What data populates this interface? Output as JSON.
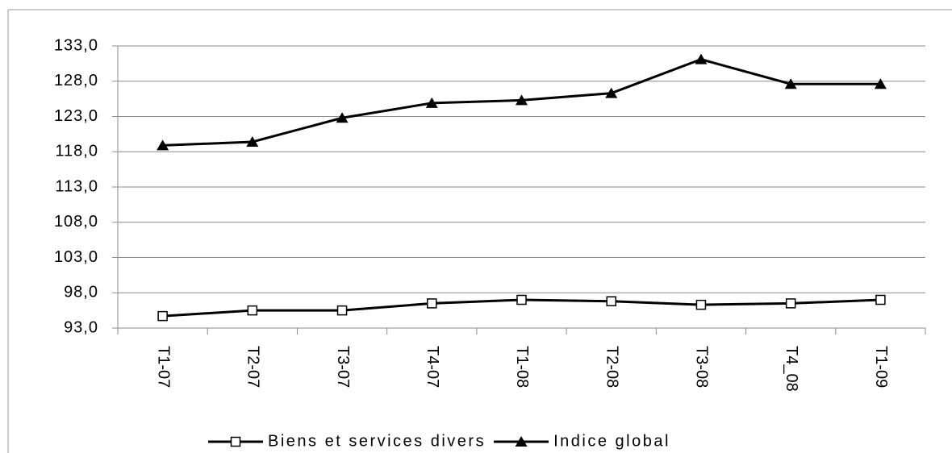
{
  "chart_data": {
    "type": "line",
    "categories": [
      "T1-07",
      "T2-07",
      "T3-07",
      "T4-07",
      "T1-08",
      "T2-08",
      "T3-08",
      "T4_08",
      "T1-09"
    ],
    "series": [
      {
        "name": "Biens et services divers",
        "color": "#000000",
        "marker": "square",
        "values": [
          94.7,
          95.5,
          95.5,
          96.5,
          97.0,
          96.8,
          96.3,
          96.5,
          97.0
        ]
      },
      {
        "name": "Indice global",
        "color": "#000000",
        "marker": "triangle",
        "values": [
          118.9,
          119.4,
          122.8,
          124.9,
          125.3,
          126.3,
          131.1,
          127.6,
          127.6
        ]
      }
    ],
    "ylim": [
      93,
      133
    ],
    "yticks": [
      {
        "value": 93,
        "label": "93,0"
      },
      {
        "value": 98,
        "label": "98,0"
      },
      {
        "value": 103,
        "label": "103,0"
      },
      {
        "value": 108,
        "label": "108,0"
      },
      {
        "value": 113,
        "label": "113,0"
      },
      {
        "value": 118,
        "label": "118,0"
      },
      {
        "value": 123,
        "label": "123,0"
      },
      {
        "value": 128,
        "label": "128,0"
      },
      {
        "value": 133,
        "label": "133,0"
      }
    ],
    "grid": true,
    "legend": "bottom"
  }
}
